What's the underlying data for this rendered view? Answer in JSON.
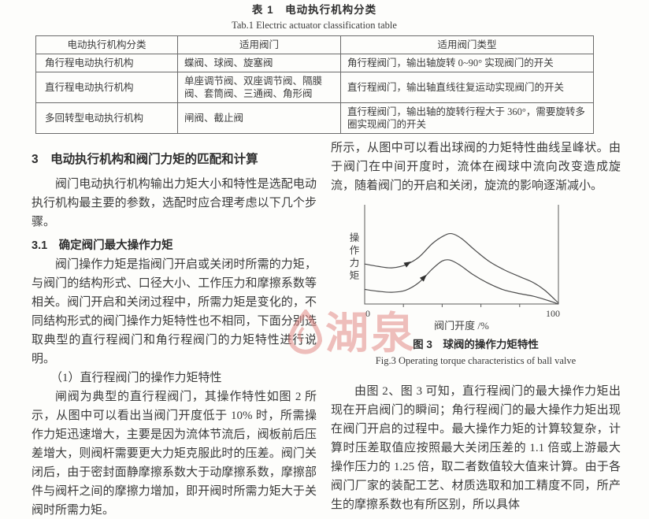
{
  "table": {
    "title_zh": "表 1　电动执行机构分类",
    "title_en": "Tab.1  Electric actuator classification table",
    "headers": [
      "电动执行机构分类",
      "适用阀门",
      "适用阀门类型"
    ],
    "rows": [
      [
        "角行程电动执行机构",
        "蝶阀、球阀、旋塞阀",
        "角行程阀门，输出轴旋转 0~90° 实现阀门的开关"
      ],
      [
        "直行程电动执行机构",
        "单座调节阀、双座调节阀、隔膜阀、套筒阀、三通阀、角形阀",
        "直行程阀门，输出轴直线往复运动实现阀门的开关"
      ],
      [
        "多回转型电动执行机构",
        "闸阀、截止阀",
        "直行程阀门，输出轴的旋转行程大于 360°，需要旋转多圈实现阀门的开关"
      ]
    ]
  },
  "left_column": {
    "section_heading": "3　电动执行机构和阀门力矩的匹配和计算",
    "para_intro": "阀门电动执行机构输出力矩大小和特性是选配电动执行机构最主要的参数，选配时应合理考虑以下几个步骤。",
    "subsection_heading": "3.1　确定阀门最大操作力矩",
    "para_torque": "阀门操作力矩是指阀门开启或关闭时所需的力矩，与阀门的结构形式、口径大小、工作压力和摩擦系数等相关。阀门开启和关闭过程中，所需力矩是变化的，不同结构形式的阀门操作力矩特性也不相同，下面分别选取典型的直行程阀门和角行程阀门的力矩特性进行说明。",
    "item_heading": "（1）直行程阀门的操作力矩特性",
    "para_gate_valve": "闸阀为典型的直行程阀门，其操作特性如图 2 所示，从图中可以看出当阀门开度低于 10% 时，所需操作力矩迅速增大，主要是因为流体节流后，阀板前后压差增大，则阀杆需要更大力矩克服此时的压差。阀门关闭后，由于密封面静摩擦系数大于动摩擦系数，摩擦部件与阀杆之间的摩擦力增加，即开阀时所需力矩大于关阀时所需力矩。"
  },
  "right_column": {
    "para_ball_valve": "所示，从图中可以看出球阀的力矩特性曲线呈峰状。由于阀门在中间开度时，流体在阀球中流向改变造成旋流，随着阀门的开启和关闭，旋流的影响逐渐减小。",
    "figure_caption_zh": "图 3　球阀的操作力矩特性",
    "figure_caption_en": "Fig.3  Operating torque characteristics of ball valve",
    "para_max_torque": "由图 2、图 3 可知，直行程阀门的最大操作力矩出现在开启阀门的瞬间；角行程阀门的最大操作力矩出现在阀门开启的过程中。最大操作力矩的计算较复杂，计算时压差取值应按照最大关闭压差的 1.1 倍或上游最大操作压力的 1.25 倍，取二者数值较大值来计算。由于各阀门厂家的装配工艺、材质选取和加工精度不同，所产生的摩擦系数也有所区别，所以具体"
  },
  "watermark": {
    "text": "湖泉",
    "color": "#e0807d"
  },
  "chart_data": {
    "type": "line",
    "title_zh": "图 3　球阀的操作力矩特性",
    "title_en": "Fig.3  Operating torque characteristics of ball valve",
    "xlabel": "阀门开度 /%",
    "ylabel": "操作力矩",
    "xlim": [
      0,
      100
    ],
    "ylim": [
      0,
      100
    ],
    "x_ticks": [
      0,
      20,
      40,
      60,
      80,
      100
    ],
    "x_tick_labels": [
      "0",
      "",
      "",
      "",
      "",
      "100"
    ],
    "grid": false,
    "legend": "none",
    "axis_color": "#5a5a5a",
    "curve_color": "#4c4c4c",
    "series": [
      {
        "name": "upper_curve",
        "arrow_at_x": 24,
        "points": [
          [
            0,
            41
          ],
          [
            7,
            38.5
          ],
          [
            14,
            37
          ],
          [
            21,
            40
          ],
          [
            28,
            48
          ],
          [
            35,
            62
          ],
          [
            41,
            70
          ],
          [
            45,
            72
          ],
          [
            50,
            67
          ],
          [
            57,
            55
          ],
          [
            64,
            44
          ],
          [
            72,
            35
          ],
          [
            80,
            28
          ],
          [
            87,
            22
          ],
          [
            93,
            14
          ],
          [
            100,
            1
          ]
        ]
      },
      {
        "name": "lower_curve",
        "arrow_at_x": 32,
        "points": [
          [
            0,
            15
          ],
          [
            7,
            13
          ],
          [
            14,
            12
          ],
          [
            21,
            14
          ],
          [
            28,
            22
          ],
          [
            35,
            36
          ],
          [
            40,
            44
          ],
          [
            44,
            45
          ],
          [
            49,
            40
          ],
          [
            56,
            30
          ],
          [
            63,
            22
          ],
          [
            71,
            15
          ],
          [
            79,
            11
          ],
          [
            87,
            8
          ],
          [
            94,
            4
          ],
          [
            100,
            0
          ]
        ]
      }
    ]
  }
}
